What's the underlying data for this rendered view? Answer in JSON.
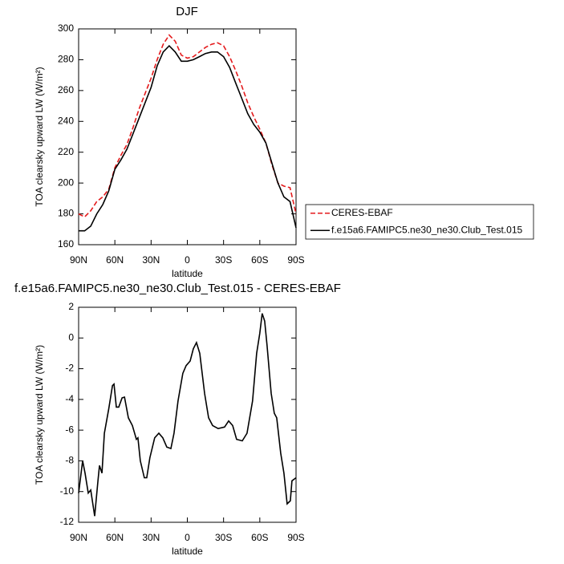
{
  "chart_data": [
    {
      "type": "line",
      "title": "DJF",
      "xlabel": "latitude",
      "ylabel": "TOA clearsky upward LW (W/m²)",
      "x": [
        90,
        85,
        80,
        75,
        70,
        65,
        60,
        55,
        50,
        45,
        40,
        35,
        30,
        25,
        20,
        15,
        10,
        5,
        0,
        -5,
        -10,
        -15,
        -20,
        -25,
        -30,
        -35,
        -40,
        -45,
        -50,
        -55,
        -60,
        -65,
        -70,
        -75,
        -80,
        -85,
        -90
      ],
      "series": [
        {
          "name": "CERES-EBAF",
          "color": "#e41a1c",
          "dash": "dashed",
          "values": [
            180,
            178,
            182,
            188,
            191,
            196,
            210,
            218,
            225,
            236,
            248,
            258,
            268,
            280,
            290,
            296,
            292,
            283,
            281,
            282,
            285,
            288,
            290,
            291,
            289,
            282,
            273,
            263,
            252,
            243,
            235,
            226,
            212,
            200,
            198,
            197,
            180
          ]
        },
        {
          "name": "f.e15a6.FAMIPC5.ne30_ne30.Club_Test.015",
          "color": "#000000",
          "dash": "solid",
          "values": [
            169,
            169,
            172,
            180,
            186,
            195,
            209,
            215,
            222,
            232,
            242,
            252,
            262,
            276,
            285,
            289,
            285,
            279,
            279,
            280,
            282,
            284,
            285,
            285,
            282,
            275,
            265,
            255,
            245,
            238,
            233,
            226,
            213,
            200,
            191,
            188,
            171
          ]
        }
      ],
      "xlim": [
        90,
        -90
      ],
      "xticks": [
        {
          "value": 90,
          "label": "90N"
        },
        {
          "value": 60,
          "label": "60N"
        },
        {
          "value": 30,
          "label": "30N"
        },
        0,
        {
          "value": -30,
          "label": "30S"
        },
        {
          "value": -60,
          "label": "60S"
        },
        {
          "value": -90,
          "label": "90S"
        }
      ],
      "ylim": [
        160,
        300
      ],
      "yticks": [
        160,
        180,
        200,
        220,
        240,
        260,
        280,
        300
      ],
      "legend": "right"
    },
    {
      "type": "line",
      "title": "f.e15a6.FAMIPC5.ne30_ne30.Club_Test.015 - CERES-EBAF",
      "xlabel": "latitude",
      "ylabel": "TOA clearsky upward LW (W/m²)",
      "x": [
        90,
        86.7,
        84.7,
        82,
        80,
        76.7,
        74,
        72.7,
        70.7,
        68.7,
        65,
        62,
        60.7,
        58.8,
        56.8,
        54,
        52,
        48.8,
        45.5,
        42.2,
        40.9,
        38.9,
        35.6,
        33.6,
        31,
        27,
        23.6,
        20.3,
        17,
        13.6,
        11,
        7.7,
        3.7,
        1,
        -2.3,
        -5,
        -7.6,
        -10.3,
        -14.3,
        -17.6,
        -20.9,
        -25.5,
        -30.8,
        -34.2,
        -37.5,
        -40.8,
        -45.5,
        -49.4,
        -54,
        -57.4,
        -60,
        -62,
        -64,
        -66,
        -69.4,
        -72,
        -74,
        -77.3,
        -80,
        -82.6,
        -85.3,
        -86.6,
        -90
      ],
      "series": [
        {
          "color": "#000000",
          "dash": "solid",
          "values": [
            -10.1,
            -8.0,
            -8.8,
            -10.1,
            -9.9,
            -11.6,
            -9.3,
            -8.3,
            -8.8,
            -6.2,
            -4.6,
            -3.1,
            -3.0,
            -4.5,
            -4.5,
            -3.9,
            -3.85,
            -5.2,
            -5.7,
            -6.6,
            -6.5,
            -8.0,
            -9.1,
            -9.1,
            -7.8,
            -6.5,
            -6.2,
            -6.5,
            -7.1,
            -7.2,
            -6.2,
            -4.1,
            -2.3,
            -1.8,
            -1.5,
            -0.7,
            -0.3,
            -1.0,
            -3.6,
            -5.2,
            -5.7,
            -5.9,
            -5.8,
            -5.4,
            -5.7,
            -6.6,
            -6.7,
            -6.2,
            -4.1,
            -1.0,
            0.3,
            1.6,
            1.1,
            -0.5,
            -3.6,
            -4.9,
            -5.2,
            -7.5,
            -8.8,
            -10.8,
            -10.6,
            -9.3,
            -9.1
          ]
        }
      ],
      "xlim": [
        90,
        -90
      ],
      "xticks": [
        {
          "value": 90,
          "label": "90N"
        },
        {
          "value": 60,
          "label": "60N"
        },
        {
          "value": 30,
          "label": "30N"
        },
        0,
        {
          "value": -30,
          "label": "30S"
        },
        {
          "value": -60,
          "label": "60S"
        },
        {
          "value": -90,
          "label": "90S"
        }
      ],
      "ylim": [
        -12,
        2
      ],
      "yticks": [
        -12,
        -10,
        -8,
        -6,
        -4,
        -2,
        0,
        2
      ]
    }
  ]
}
